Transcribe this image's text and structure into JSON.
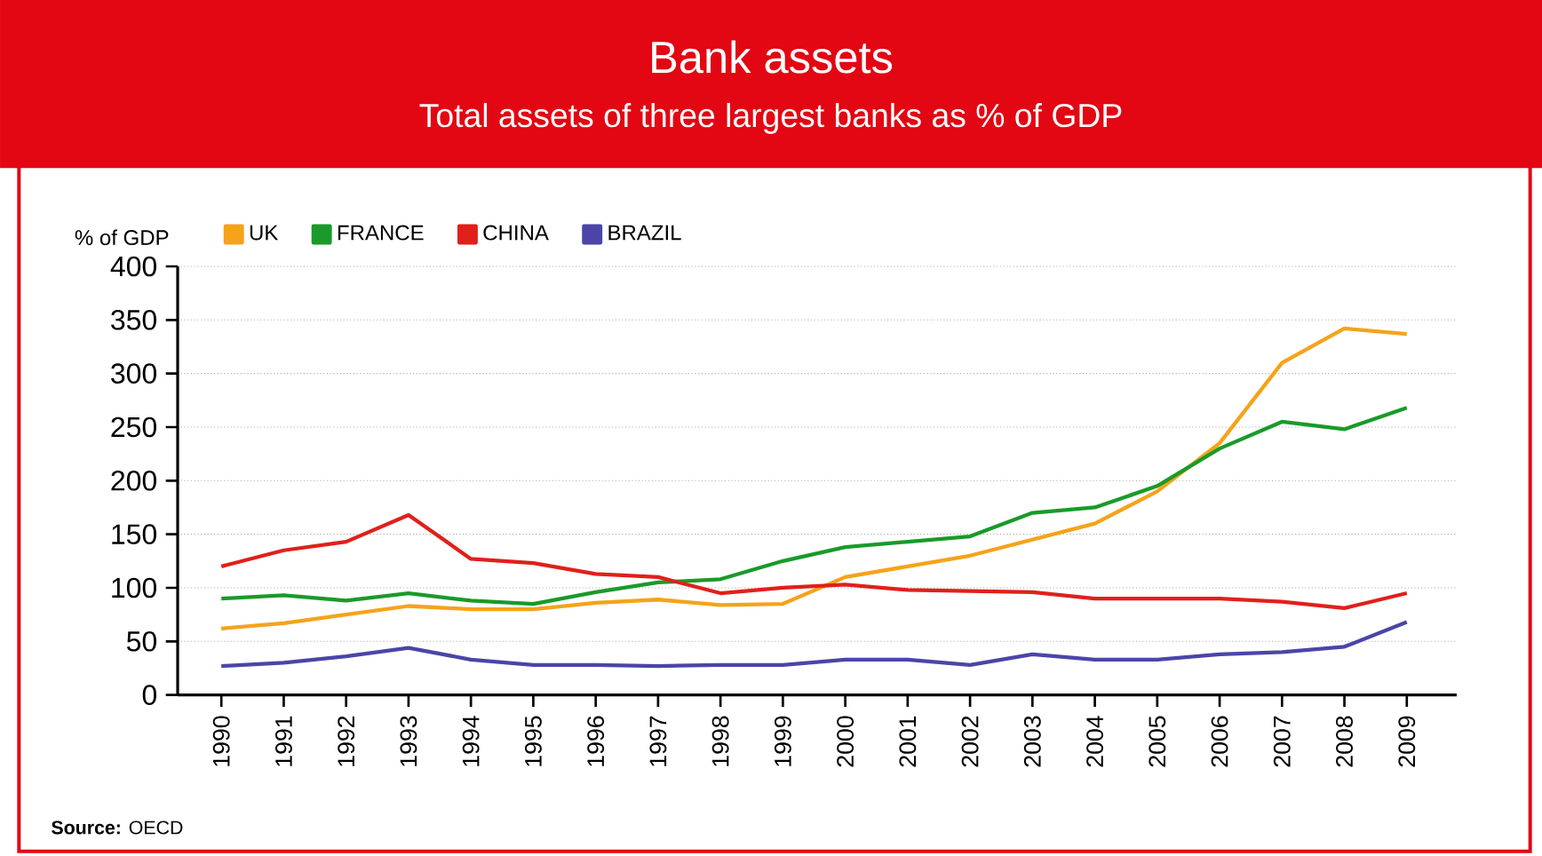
{
  "chart_data": {
    "type": "line",
    "title": "Bank assets",
    "subtitle": "Total assets of three largest banks as % of GDP",
    "ylabel": "% of GDP",
    "categories": [
      "1990",
      "1991",
      "1992",
      "1993",
      "1994",
      "1995",
      "1996",
      "1997",
      "1998",
      "1999",
      "2000",
      "2001",
      "2002",
      "2003",
      "2004",
      "2005",
      "2006",
      "2007",
      "2008",
      "2009"
    ],
    "series": [
      {
        "name": "UK",
        "color": "#f5a31a",
        "values": [
          62,
          67,
          75,
          83,
          80,
          80,
          86,
          89,
          84,
          85,
          110,
          120,
          130,
          145,
          160,
          190,
          235,
          310,
          342,
          337
        ]
      },
      {
        "name": "FRANCE",
        "color": "#1a9a2a",
        "values": [
          90,
          93,
          88,
          95,
          88,
          85,
          96,
          105,
          108,
          125,
          138,
          143,
          148,
          170,
          175,
          195,
          230,
          255,
          248,
          268
        ]
      },
      {
        "name": "CHINA",
        "color": "#e0201b",
        "values": [
          120,
          135,
          143,
          168,
          127,
          123,
          113,
          110,
          95,
          100,
          103,
          98,
          97,
          96,
          90,
          90,
          90,
          87,
          81,
          95
        ]
      },
      {
        "name": "BRAZIL",
        "color": "#4b45a8",
        "values": [
          27,
          30,
          36,
          44,
          33,
          28,
          28,
          27,
          28,
          28,
          33,
          33,
          28,
          38,
          33,
          33,
          38,
          40,
          45,
          68
        ]
      }
    ],
    "ylim": [
      0,
      400
    ],
    "yticks": [
      0,
      50,
      100,
      150,
      200,
      250,
      300,
      350,
      400
    ],
    "grid": "y",
    "legend": "top left",
    "marker": "none",
    "line_style": "solid",
    "annotations": [
      "**Source:** OECD"
    ]
  }
}
